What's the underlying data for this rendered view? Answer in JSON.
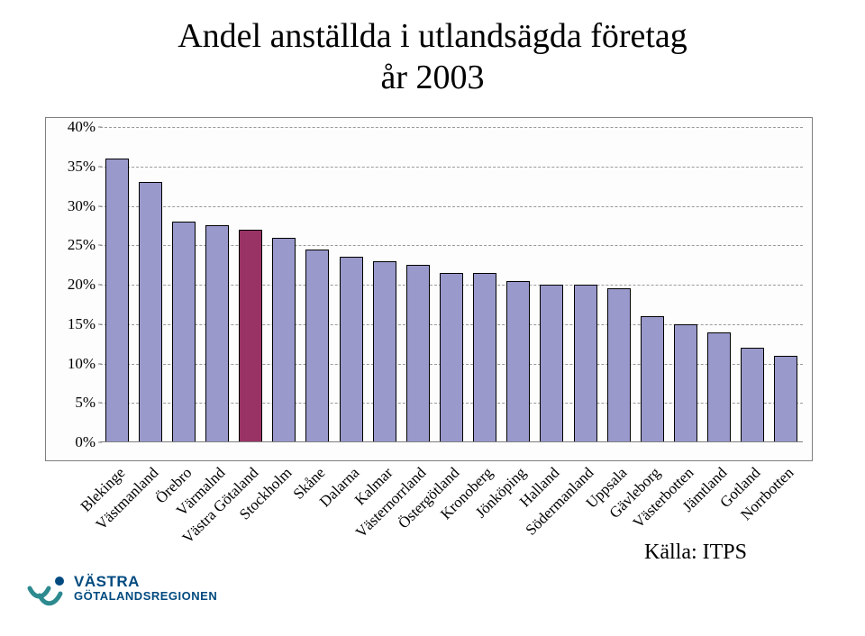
{
  "title": {
    "line1": "Andel anställda i utlandsägda företag",
    "line2": "år 2003",
    "fontsize": 38,
    "color": "#000000"
  },
  "chart": {
    "type": "bar",
    "background_color": "#fdfdfd",
    "frame_color": "#7f7f7f",
    "grid_color": "#9a9a9a",
    "grid_dashed": true,
    "ylim": [
      0,
      40
    ],
    "ytick_step": 5,
    "y_ticks": [
      "0%",
      "5%",
      "10%",
      "15%",
      "20%",
      "25%",
      "30%",
      "35%",
      "40%"
    ],
    "y_tick_fontsize": 17,
    "x_label_fontsize": 17,
    "x_label_rotation_deg": -45,
    "bar_width_ratio": 0.7,
    "bar_border_color": "#000000",
    "default_bar_color": "#9999cc",
    "highlight_bar_color": "#993366",
    "categories": [
      "Blekinge",
      "Västmanland",
      "Örebro",
      "Värmalnd",
      "Västra Götaland",
      "Stockholm",
      "Skåne",
      "Dalarna",
      "Kalmar",
      "Västernorrland",
      "Östergötland",
      "Kronoberg",
      "Jönköping",
      "Halland",
      "Södermanland",
      "Uppsala",
      "Gävleborg",
      "Västerbotten",
      "Jämtland",
      "Gotland",
      "Norrbotten"
    ],
    "values": [
      36,
      33,
      28,
      27.5,
      27,
      26,
      24.5,
      23.5,
      23,
      22.5,
      21.5,
      21.5,
      20.5,
      20,
      20,
      19.5,
      16,
      15,
      14,
      12,
      11
    ],
    "highlight_index": 4
  },
  "source": {
    "label": "Källa: ITPS",
    "fontsize": 24
  },
  "logo": {
    "line1": "VÄSTRA",
    "line2": "GÖTALANDSREGIONEN",
    "svg_checks": {
      "stroke": "#2d8a8f",
      "dot_fill": "#004a7f"
    },
    "text_color": "#004a7f"
  }
}
